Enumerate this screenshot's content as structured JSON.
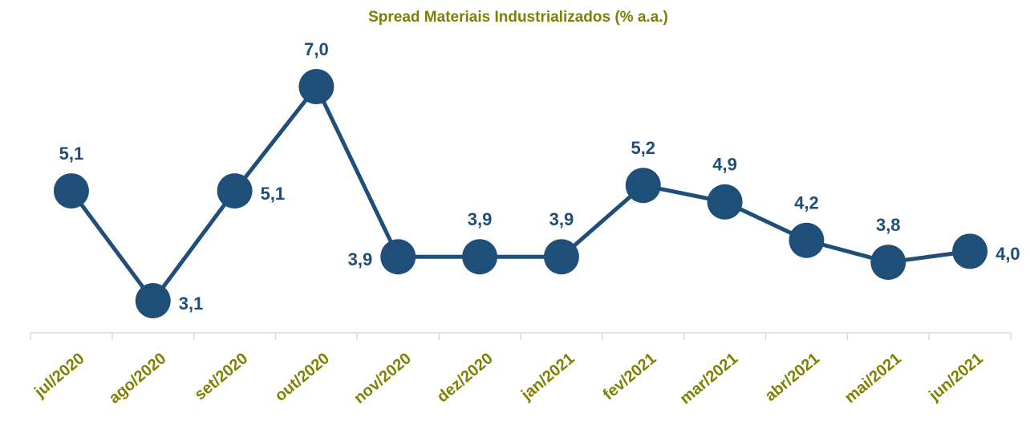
{
  "chart_data": {
    "type": "line",
    "title": "Spread Materiais Industrializados (% a.a.)",
    "categories": [
      "jul/2020",
      "ago/2020",
      "set/2020",
      "out/2020",
      "nov/2020",
      "dez/2020",
      "jan/2021",
      "fev/2021",
      "mar/2021",
      "abr/2021",
      "mai/2021",
      "jun/2021"
    ],
    "series": [
      {
        "color": "#1f4e79",
        "values": [
          5.1,
          3.1,
          5.1,
          7.0,
          3.9,
          3.9,
          3.9,
          5.2,
          4.9,
          4.2,
          3.8,
          4.0
        ],
        "value_labels": [
          "5,1",
          "3,1",
          "5,1",
          "7,0",
          "3,9",
          "3,9",
          "3,9",
          "5,2",
          "4,9",
          "4,2",
          "3,8",
          "4,0"
        ]
      }
    ]
  }
}
